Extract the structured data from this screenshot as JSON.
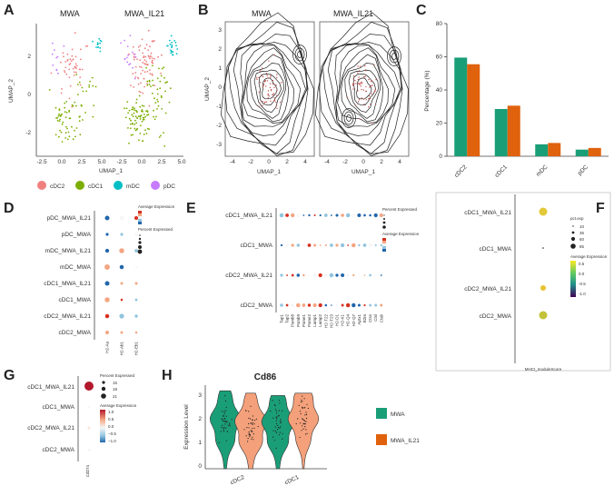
{
  "panels": {
    "A": {
      "letter": "A",
      "titles": [
        "MWA",
        "MWA_IL21"
      ],
      "xlabel": "UMAP_1",
      "ylabel": "UMAP_2",
      "xticks": [
        "-2.5",
        "0.0",
        "2.5",
        "5.0",
        "-2.5",
        "0.0",
        "2.5",
        "5.0"
      ],
      "yticks": [
        "2",
        "0",
        "-2"
      ],
      "legend": [
        {
          "label": "cDC2",
          "color": "#f08080"
        },
        {
          "label": "cDC1",
          "color": "#7cae00"
        },
        {
          "label": "mDC",
          "color": "#00bfc4"
        },
        {
          "label": "pDC",
          "color": "#c77cff"
        }
      ]
    },
    "B": {
      "letter": "B",
      "titles": [
        "MWA",
        "MWA_IL21"
      ],
      "xlabel": "UMAP_1",
      "ylabel": "UMAP_2",
      "xticks": [
        "-4",
        "-2",
        "0",
        "2",
        "4",
        "-4",
        "-2",
        "0",
        "2",
        "4"
      ],
      "yticks": [
        "3",
        "2",
        "1",
        "0",
        "-1",
        "-2",
        "-3"
      ]
    },
    "C": {
      "letter": "C"
    },
    "D": {
      "letter": "D",
      "rows": [
        "pDC_MWA_IL21",
        "pDC_MWA",
        "mDC_MWA_IL21",
        "mDC_MWA",
        "cDC1_MWA_IL21",
        "cDC1_MWA",
        "cDC2_MWA_IL21",
        "cDC2_MWA"
      ],
      "genes": [
        "H2-Aa",
        "H2-Ab1",
        "H2-Eb1"
      ],
      "legend_expr": "Average Expression",
      "legend_pct": "Percent Expressed"
    },
    "E": {
      "letter": "E",
      "rows": [
        "cDC1_MWA_IL21",
        "cDC1_MWA",
        "cDC2_MWA_IL21",
        "cDC2_MWA"
      ],
      "genes": [
        "Tap1",
        "Tap2",
        "Psmb8",
        "Psmb9",
        "Psme1",
        "Psme2",
        "Lamp1",
        "Lamp2",
        "H2-T22",
        "H2-T23",
        "H2-D1",
        "H2-K1",
        "H2-Q4",
        "H2-Q7",
        "Aptx1",
        "B2m",
        "Ctss",
        "Ctsl",
        "Ctsb"
      ],
      "legend_pct": "Percent Expressed",
      "legend_expr": "Average Expression"
    },
    "F": {
      "letter": "F",
      "rows": [
        "cDC1_MWA_IL21",
        "cDC1_MWA",
        "cDC2_MWA_IL21",
        "cDC2_MWA"
      ],
      "gene": "MHCI_moduleScore",
      "legend_pct": "pct.exp",
      "pct_ticks": [
        "10",
        "35",
        "60",
        "85"
      ],
      "legend_expr": "Average Expression",
      "expr_ticks": [
        "0.5",
        "0.0",
        "-0.5",
        "-1.0"
      ]
    },
    "G": {
      "letter": "G",
      "rows": [
        "cDC1_MWA_IL21",
        "cDC1_MWA",
        "cDC2_MWA_IL21",
        "cDC2_MWA"
      ],
      "gene": "Cd274",
      "legend_pct": "Percent Expressed",
      "pct_ticks": [
        "15",
        "18",
        "21"
      ],
      "legend_expr": "Average Expression",
      "expr_ticks": [
        "1.0",
        "0.5",
        "0.0",
        "−0.5",
        "−1.0"
      ]
    },
    "H": {
      "letter": "H",
      "title": "Cd86",
      "ylabel": "Expression Level",
      "yticks": [
        "3",
        "2",
        "1",
        "0"
      ],
      "xticks": [
        "cDC2",
        "cDC1"
      ],
      "legend": [
        {
          "label": "MWA",
          "color": "#1a9e77"
        },
        {
          "label": "MWA_IL21",
          "color": "#f4a07a"
        }
      ]
    }
  },
  "chart_data": {
    "type": "bar",
    "title": "",
    "xlabel": "",
    "ylabel": "Percentage (%)",
    "ylim": [
      0,
      80
    ],
    "yticks": [
      0,
      20,
      40,
      60,
      80
    ],
    "categories": [
      "cDC2",
      "cDC1",
      "mDC",
      "pDC"
    ],
    "series": [
      {
        "name": "MWA",
        "color": "#1a9e77",
        "values": [
          59.5,
          28.5,
          7.2,
          4.0
        ]
      },
      {
        "name": "MWA_IL21",
        "color": "#e0620d",
        "values": [
          55.5,
          30.5,
          8.0,
          5.0
        ]
      }
    ]
  }
}
